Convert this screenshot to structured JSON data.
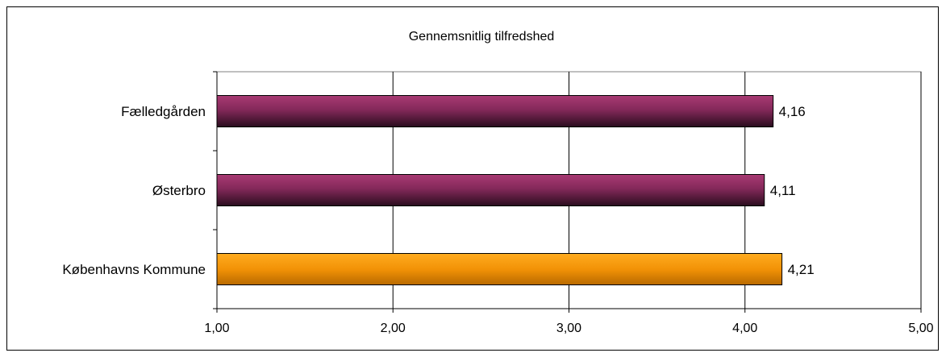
{
  "chart_data": {
    "type": "bar",
    "orientation": "horizontal",
    "title": "Gennemsnitlig tilfredshed",
    "categories": [
      "Fælledgården",
      "Østerbro",
      "Københavns Kommune"
    ],
    "values": [
      4.16,
      4.11,
      4.21
    ],
    "value_labels": [
      "4,16",
      "4,11",
      "4,21"
    ],
    "bar_colors": [
      "#8e2f5f",
      "#8e2f5f",
      "#f39a0b"
    ],
    "xlim": [
      1,
      5
    ],
    "x_ticks": [
      1,
      2,
      3,
      4,
      5
    ],
    "x_tick_labels": [
      "1,00",
      "2,00",
      "3,00",
      "4,00",
      "5,00"
    ],
    "grid": true,
    "legend": "none"
  }
}
